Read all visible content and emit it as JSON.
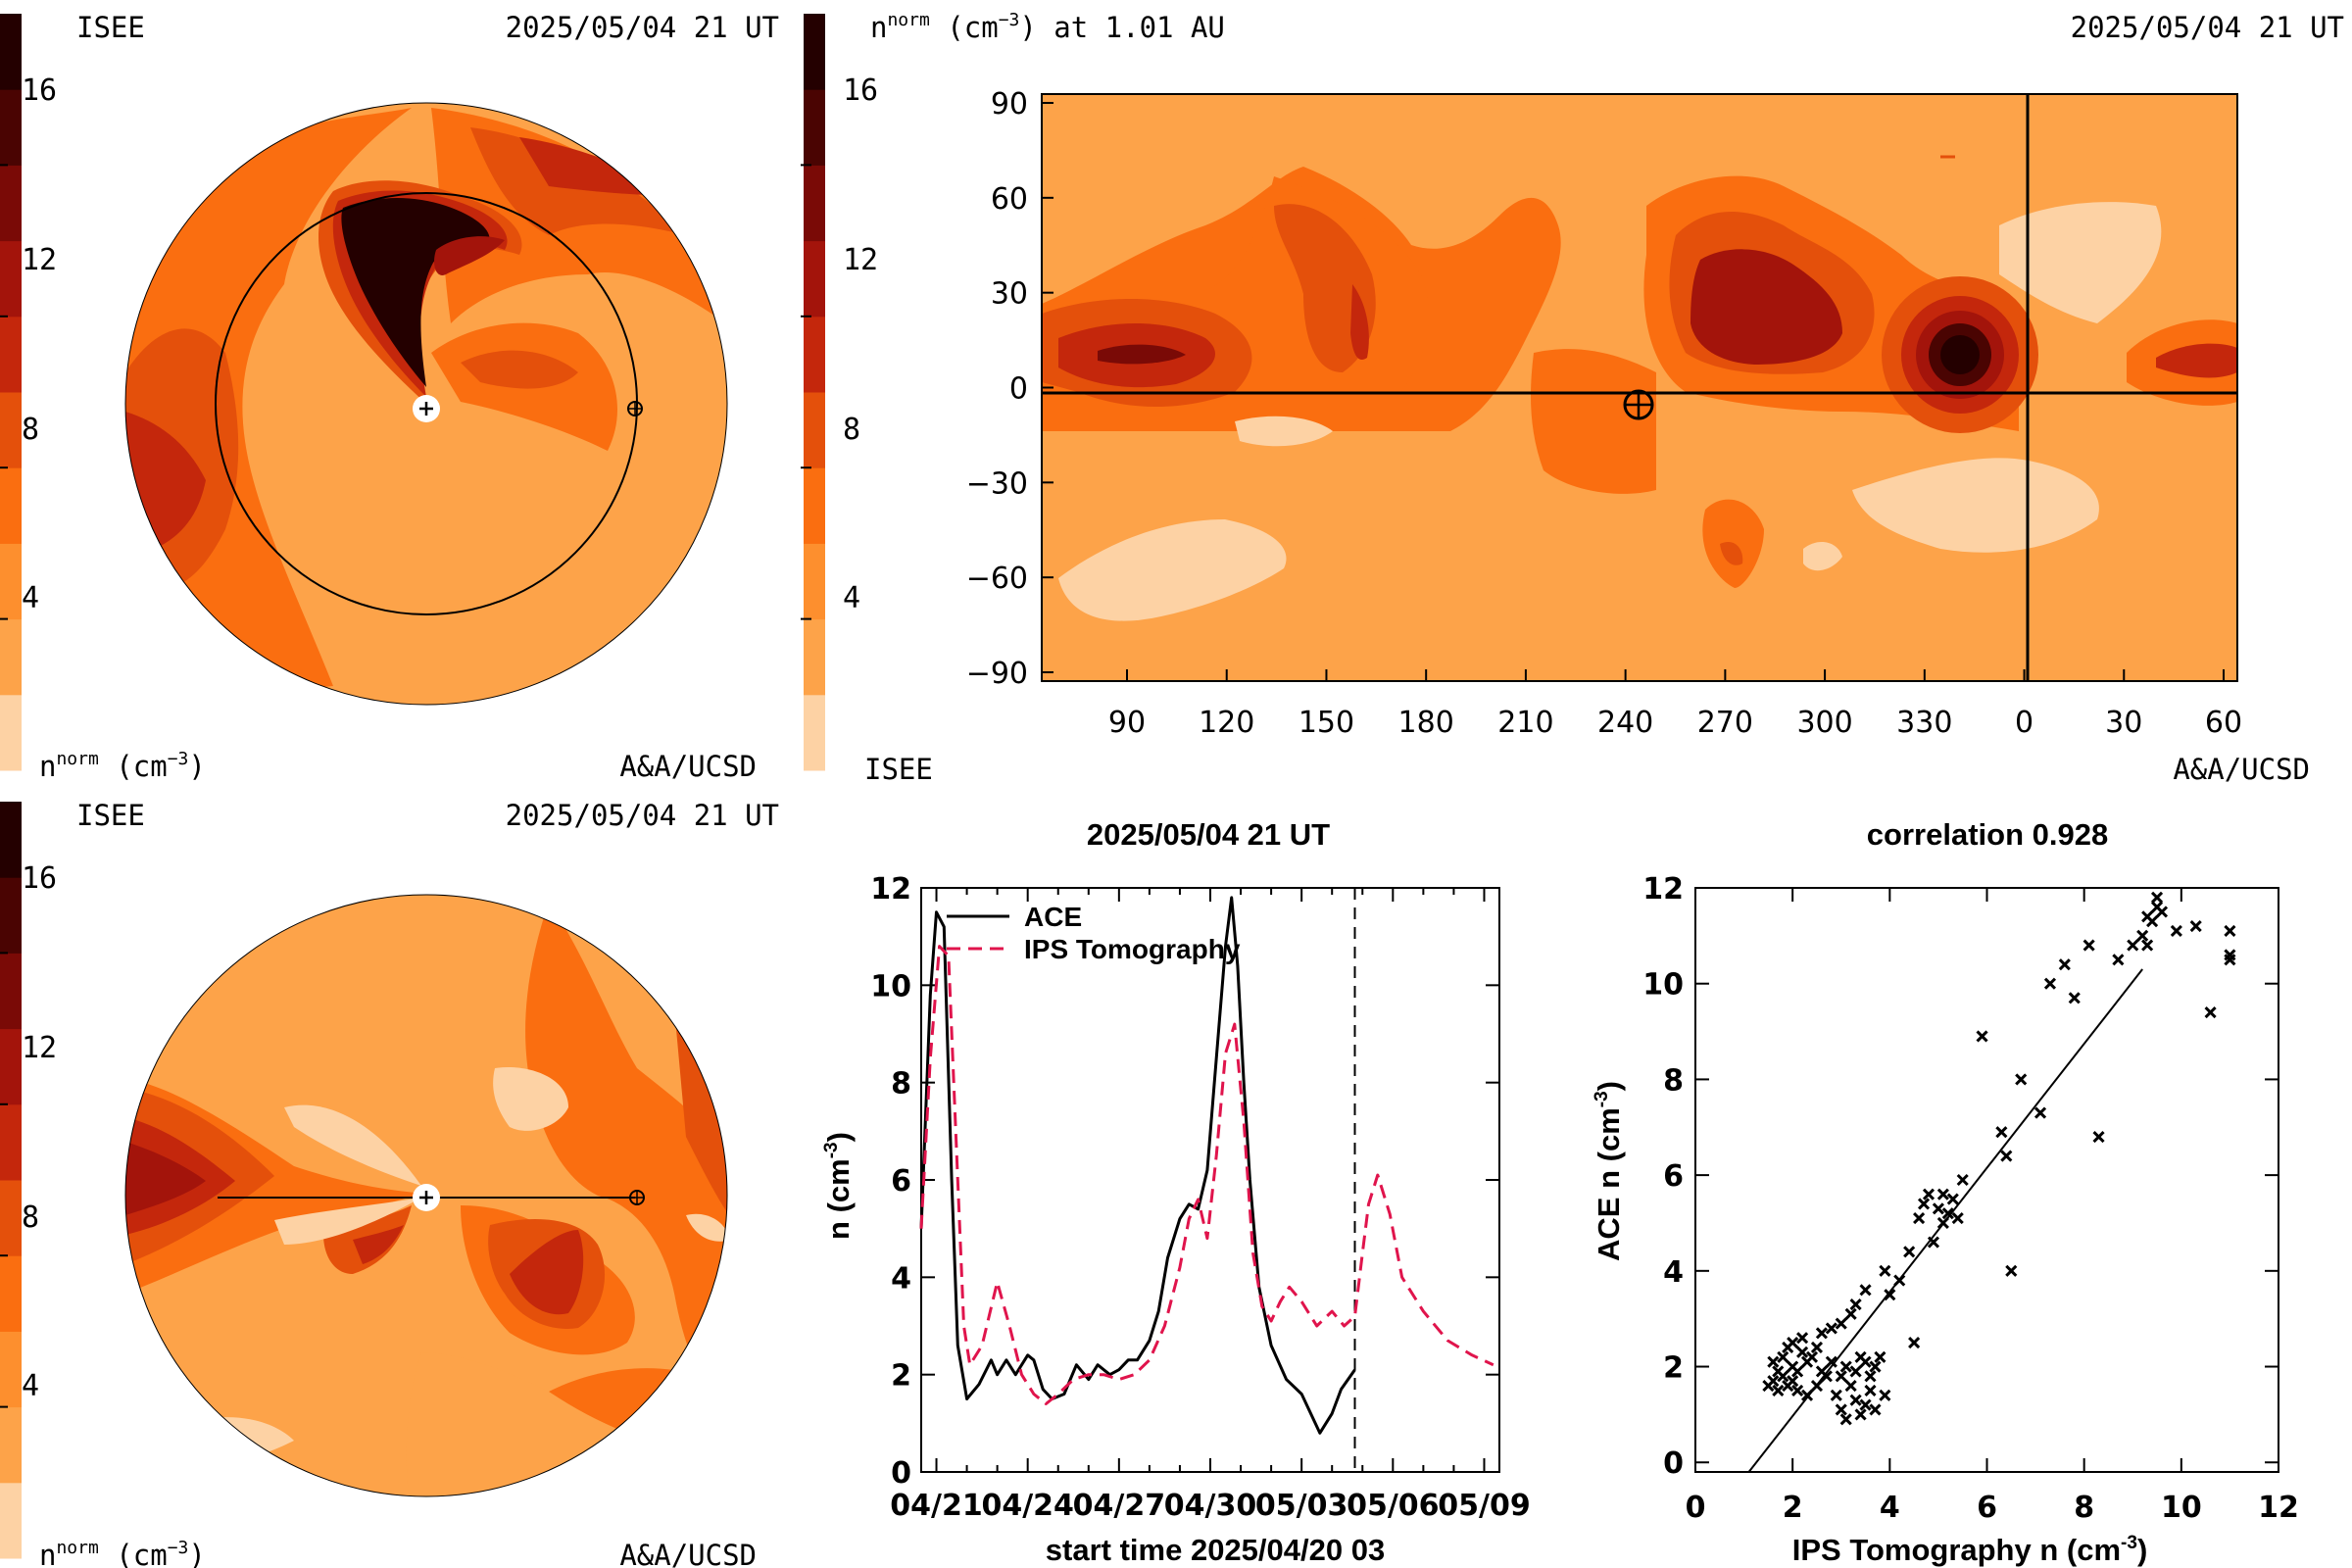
{
  "colors": {
    "levels": [
      "#fdd2a4",
      "#fda349",
      "#fd8f2e",
      "#fa6e10",
      "#e4500b",
      "#c4270c",
      "#a3140b",
      "#7a0a06",
      "#4a0402",
      "#240000"
    ],
    "axis": "#000000",
    "ace_line": "#000000",
    "ips_line": "#e0144c"
  },
  "top_left_panel": {
    "label_left": "ISEE",
    "timestamp": "2025/05/04 21 UT",
    "credit": "A&A/UCSD",
    "colorbar_label": "n",
    "colorbar_label_sup": "norm",
    "colorbar_unit": "(cm",
    "colorbar_unit_sup": "−3",
    "colorbar_unit_close": ")",
    "colorbar_ticks": [
      "16",
      "12",
      "8",
      "4"
    ]
  },
  "top_right_panel": {
    "title_n": "n",
    "title_sup": "norm",
    "title_unit": "(cm",
    "title_unit_sup": "−3",
    "title_rest": ") at 1.01 AU",
    "timestamp": "2025/05/04 21 UT",
    "label_left": "ISEE",
    "credit": "A&A/UCSD",
    "colorbar_ticks": [
      "16",
      "12",
      "8",
      "4"
    ],
    "y_ticks": [
      "90",
      "60",
      "30",
      "0",
      "−30",
      "−60",
      "−90"
    ],
    "x_ticks": [
      "90",
      "120",
      "150",
      "180",
      "210",
      "240",
      "270",
      "300",
      "330",
      "0",
      "30",
      "60"
    ]
  },
  "bottom_left_panel": {
    "label_left": "ISEE",
    "timestamp": "2025/05/04 21 UT",
    "credit": "A&A/UCSD",
    "colorbar_label": "n",
    "colorbar_label_sup": "norm",
    "colorbar_unit": "(cm",
    "colorbar_unit_sup": "−3",
    "colorbar_unit_close": ")",
    "colorbar_ticks": [
      "16",
      "12",
      "8",
      "4"
    ]
  },
  "chart_data": [
    {
      "type": "line",
      "title": "2025/05/04 21 UT",
      "xlabel": "start time 2025/04/20 03",
      "ylabel": "n (cm",
      "ylabel_sup": "-3",
      "ylabel_close": ")",
      "xlim": [
        0.5,
        19.5
      ],
      "ylim": [
        0,
        12
      ],
      "x_ticks": [
        {
          "v": 1,
          "label": "04/21"
        },
        {
          "v": 4,
          "label": "04/24"
        },
        {
          "v": 7,
          "label": "04/27"
        },
        {
          "v": 10,
          "label": "04/30"
        },
        {
          "v": 13,
          "label": "05/03"
        },
        {
          "v": 16,
          "label": "05/06"
        },
        {
          "v": 19,
          "label": "05/09"
        }
      ],
      "y_ticks": [
        0,
        2,
        4,
        6,
        8,
        10,
        12
      ],
      "vline_x": 14.75,
      "series": [
        {
          "name": "ACE",
          "style": "solid",
          "x": [
            0.5,
            0.8,
            1.0,
            1.25,
            1.5,
            1.7,
            2.0,
            2.4,
            2.8,
            3.0,
            3.3,
            3.6,
            4.0,
            4.2,
            4.5,
            4.8,
            5.2,
            5.6,
            6.0,
            6.3,
            6.7,
            7.0,
            7.3,
            7.6,
            8.0,
            8.3,
            8.6,
            9.0,
            9.3,
            9.6,
            9.9,
            10.2,
            10.5,
            10.7,
            10.9,
            11.1,
            11.3,
            11.6,
            12.0,
            12.5,
            13.0,
            13.3,
            13.6,
            14.0,
            14.3,
            14.75
          ],
          "y": [
            5.0,
            9.8,
            11.5,
            11.2,
            6.0,
            2.6,
            1.5,
            1.8,
            2.3,
            2.0,
            2.3,
            2.0,
            2.4,
            2.3,
            1.7,
            1.5,
            1.6,
            2.2,
            1.9,
            2.2,
            2.0,
            2.1,
            2.3,
            2.3,
            2.7,
            3.3,
            4.4,
            5.2,
            5.5,
            5.4,
            6.2,
            8.5,
            10.8,
            11.8,
            10.4,
            8.0,
            6.0,
            3.8,
            2.6,
            1.9,
            1.6,
            1.2,
            0.8,
            1.2,
            1.7,
            2.1
          ]
        },
        {
          "name": "IPS Tomography",
          "style": "dashed",
          "x": [
            0.5,
            0.8,
            1.1,
            1.4,
            1.7,
            1.9,
            2.1,
            2.5,
            3.0,
            3.4,
            3.8,
            4.2,
            4.6,
            5.0,
            5.5,
            6.0,
            6.5,
            7.0,
            7.5,
            8.0,
            8.5,
            9.0,
            9.3,
            9.6,
            9.9,
            10.2,
            10.5,
            10.8,
            11.1,
            11.4,
            11.7,
            12.0,
            12.3,
            12.6,
            13.0,
            13.5,
            14.0,
            14.4,
            14.75,
            15.0,
            15.2,
            15.5,
            15.9,
            16.3,
            17.0,
            17.8,
            18.6,
            19.3
          ],
          "y": [
            5.0,
            8.5,
            10.8,
            10.6,
            6.0,
            3.0,
            2.2,
            2.6,
            3.9,
            3.0,
            2.0,
            1.6,
            1.4,
            1.6,
            1.9,
            2.0,
            2.0,
            1.9,
            2.0,
            2.3,
            3.0,
            4.2,
            5.2,
            5.6,
            4.8,
            6.5,
            8.6,
            9.2,
            7.2,
            4.5,
            3.4,
            3.1,
            3.5,
            3.8,
            3.5,
            3.0,
            3.3,
            3.0,
            3.2,
            4.5,
            5.5,
            6.1,
            5.3,
            4.0,
            3.3,
            2.7,
            2.4,
            2.2
          ]
        }
      ]
    },
    {
      "type": "scatter",
      "title": "correlation 0.928",
      "xlabel": "IPS Tomography n (cm",
      "xlabel_sup": "-3",
      "xlabel_close": ")",
      "ylabel": "ACE n (cm",
      "ylabel_sup": "-3",
      "ylabel_close": ")",
      "xlim": [
        0,
        12
      ],
      "ylim": [
        -0.2,
        12
      ],
      "x_ticks": [
        0,
        2,
        4,
        6,
        8,
        10,
        12
      ],
      "y_ticks": [
        0,
        2,
        4,
        6,
        8,
        10,
        12
      ],
      "fit_line": [
        [
          1.1,
          -0.3
        ],
        [
          9.2,
          10.3
        ]
      ],
      "points": [
        [
          1.5,
          1.6
        ],
        [
          1.6,
          1.7
        ],
        [
          1.7,
          1.5
        ],
        [
          1.8,
          1.8
        ],
        [
          1.9,
          1.6
        ],
        [
          1.8,
          2.2
        ],
        [
          2.0,
          2.0
        ],
        [
          2.1,
          1.9
        ],
        [
          2.2,
          2.3
        ],
        [
          2.0,
          1.7
        ],
        [
          1.9,
          2.4
        ],
        [
          2.3,
          2.1
        ],
        [
          2.4,
          2.2
        ],
        [
          2.1,
          1.5
        ],
        [
          2.3,
          1.4
        ],
        [
          2.5,
          1.6
        ],
        [
          2.6,
          1.9
        ],
        [
          2.7,
          1.8
        ],
        [
          2.5,
          2.4
        ],
        [
          2.8,
          2.1
        ],
        [
          3.0,
          1.8
        ],
        [
          3.1,
          2.0
        ],
        [
          3.2,
          1.6
        ],
        [
          3.3,
          1.3
        ],
        [
          3.4,
          1.0
        ],
        [
          3.5,
          1.2
        ],
        [
          3.6,
          1.5
        ],
        [
          3.7,
          1.1
        ],
        [
          3.3,
          1.9
        ],
        [
          3.5,
          2.1
        ],
        [
          3.7,
          2.0
        ],
        [
          3.8,
          2.2
        ],
        [
          3.9,
          1.4
        ],
        [
          3.1,
          0.9
        ],
        [
          3.0,
          1.1
        ],
        [
          2.9,
          1.4
        ],
        [
          3.6,
          1.8
        ],
        [
          3.4,
          2.2
        ],
        [
          2.6,
          2.7
        ],
        [
          2.8,
          2.8
        ],
        [
          3.0,
          2.9
        ],
        [
          3.2,
          3.1
        ],
        [
          3.3,
          3.3
        ],
        [
          3.5,
          3.6
        ],
        [
          3.9,
          4.0
        ],
        [
          4.4,
          4.4
        ],
        [
          4.6,
          5.1
        ],
        [
          4.7,
          5.4
        ],
        [
          4.8,
          5.6
        ],
        [
          5.0,
          5.3
        ],
        [
          5.1,
          5.6
        ],
        [
          5.2,
          5.2
        ],
        [
          5.3,
          5.5
        ],
        [
          5.4,
          5.1
        ],
        [
          5.5,
          5.9
        ],
        [
          5.1,
          5.0
        ],
        [
          4.9,
          4.6
        ],
        [
          4.5,
          2.5
        ],
        [
          5.9,
          8.9
        ],
        [
          6.3,
          6.9
        ],
        [
          6.5,
          4.0
        ],
        [
          6.4,
          6.4
        ],
        [
          6.7,
          8.0
        ],
        [
          7.1,
          7.3
        ],
        [
          7.3,
          10.0
        ],
        [
          7.6,
          10.4
        ],
        [
          7.8,
          9.7
        ],
        [
          8.1,
          10.8
        ],
        [
          8.3,
          6.8
        ],
        [
          8.7,
          10.5
        ],
        [
          9.0,
          10.8
        ],
        [
          9.2,
          11.0
        ],
        [
          9.3,
          11.4
        ],
        [
          9.5,
          11.6
        ],
        [
          9.6,
          11.5
        ],
        [
          9.9,
          11.1
        ],
        [
          10.3,
          11.2
        ],
        [
          10.6,
          9.4
        ],
        [
          11.0,
          10.6
        ],
        [
          11.0,
          11.1
        ],
        [
          11.0,
          10.5
        ],
        [
          9.4,
          11.3
        ],
        [
          9.5,
          11.8
        ],
        [
          9.3,
          10.8
        ],
        [
          4.0,
          3.5
        ],
        [
          4.2,
          3.8
        ],
        [
          2.2,
          2.6
        ],
        [
          1.6,
          2.1
        ],
        [
          1.7,
          1.9
        ],
        [
          2.0,
          2.5
        ]
      ]
    }
  ]
}
